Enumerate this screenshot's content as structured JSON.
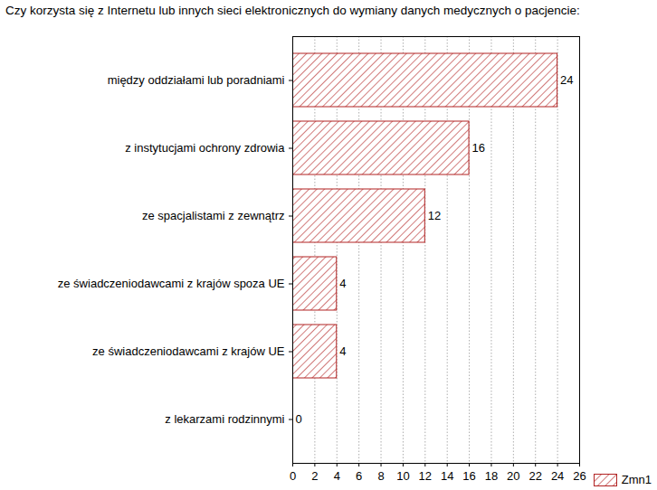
{
  "chart_data": {
    "type": "bar",
    "title": "Czy korzysta się z Internetu lub innych sieci elektronicznych do wymiany danych medycznych o pacjencie:",
    "categories": [
      "między oddziałami lub poradniami",
      "z instytucjami ochrony zdrowia",
      "ze spacjalistami z zewnątrz",
      "ze świadczeniodawcami z krajów spoza UE",
      "ze świadczeniodawcami z krajów UE",
      "z lekarzami rodzinnymi"
    ],
    "series": [
      {
        "name": "Zmn1",
        "color": "#b22222",
        "values": [
          24,
          16,
          12,
          4,
          4,
          0
        ]
      }
    ],
    "orientation": "horizontal",
    "xlim": [
      0,
      26
    ],
    "xticks": [
      0,
      2,
      4,
      6,
      8,
      10,
      12,
      14,
      16,
      18,
      20,
      22,
      24,
      26
    ],
    "grid": true,
    "data_labels": true,
    "legend": "bottom-right"
  }
}
